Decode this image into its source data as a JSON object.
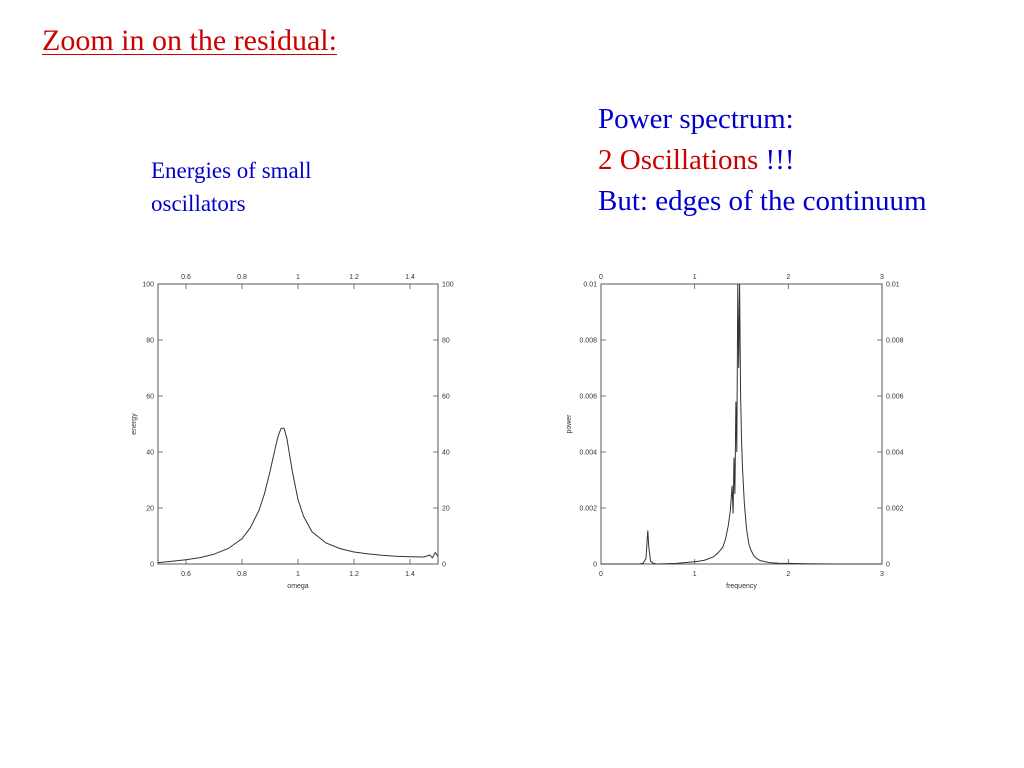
{
  "slide": {
    "title": "Zoom in on the residual:",
    "left_caption": {
      "line1": "Energies of small",
      "line2": "oscillators"
    },
    "right_caption": {
      "line1": "Power spectrum:",
      "line2_red": "2 Oscillations",
      "line2_rest": " !!!",
      "line3": "But: edges of the continuum"
    }
  },
  "colors": {
    "title": "#cc0000",
    "caption": "#0000cc",
    "emphasis": "#cc0000",
    "axes": "#555555",
    "curve": "#333333"
  },
  "chart_data": [
    {
      "type": "line",
      "xlabel": "omega",
      "ylabel": "energy",
      "xlim": [
        0.5,
        1.5
      ],
      "ylim": [
        0,
        100
      ],
      "xticks": [
        0.6,
        0.8,
        1,
        1.2,
        1.4
      ],
      "xtick_labels": [
        "0.6",
        "0.8",
        "1",
        "1.2",
        "1.4"
      ],
      "yticks": [
        0,
        20,
        40,
        60,
        80,
        100
      ],
      "ytick_labels": [
        "0",
        "20",
        "40",
        "60",
        "80",
        "100"
      ],
      "mirror_axes": true,
      "grid": false,
      "series": [
        {
          "x": [
            0.5,
            0.55,
            0.6,
            0.65,
            0.7,
            0.75,
            0.8,
            0.83,
            0.86,
            0.88,
            0.9,
            0.92,
            0.93,
            0.94,
            0.95,
            0.96,
            0.97,
            0.98,
            1.0,
            1.02,
            1.05,
            1.1,
            1.15,
            1.2,
            1.25,
            1.3,
            1.35,
            1.4,
            1.45,
            1.47,
            1.48,
            1.49,
            1.5
          ],
          "y": [
            0.5,
            1,
            1.5,
            2.3,
            3.5,
            5.5,
            9,
            13,
            19,
            25,
            33,
            42,
            46,
            48.5,
            48.5,
            45,
            39,
            33,
            23,
            17,
            11.5,
            7.5,
            5.5,
            4.3,
            3.6,
            3.1,
            2.8,
            2.6,
            2.5,
            3.2,
            2.2,
            4.1,
            2.8
          ]
        }
      ]
    },
    {
      "type": "line",
      "xlabel": "frequency",
      "ylabel": "power",
      "xlim": [
        0,
        3
      ],
      "ylim": [
        0,
        0.01
      ],
      "xticks": [
        0,
        1,
        2,
        3
      ],
      "xtick_labels": [
        "0",
        "1",
        "2",
        "3"
      ],
      "yticks": [
        0,
        0.002,
        0.004,
        0.006,
        0.008,
        0.01
      ],
      "ytick_labels": [
        "0",
        "0.002",
        "0.004",
        "0.006",
        "0.008",
        "0.01"
      ],
      "mirror_axes": true,
      "grid": false,
      "series": [
        {
          "x": [
            0,
            0.4,
            0.45,
            0.48,
            0.5,
            0.51,
            0.53,
            0.56,
            0.6,
            0.8,
            1.0,
            1.1,
            1.2,
            1.25,
            1.3,
            1.33,
            1.36,
            1.38,
            1.4,
            1.41,
            1.42,
            1.43,
            1.44,
            1.45,
            1.46,
            1.47,
            1.48,
            1.49,
            1.5,
            1.51,
            1.52,
            1.53,
            1.54,
            1.55,
            1.56,
            1.58,
            1.6,
            1.63,
            1.66,
            1.7,
            1.8,
            1.9,
            2.0,
            2.2,
            2.5,
            3.0
          ],
          "y": [
            0,
            0,
            2e-05,
            0.0002,
            0.0012,
            0.0006,
            0.0001,
            2e-05,
            0,
            2e-05,
            8e-05,
            0.00013,
            0.00025,
            0.0004,
            0.0006,
            0.0009,
            0.0014,
            0.0019,
            0.0028,
            0.0018,
            0.0038,
            0.0025,
            0.0058,
            0.004,
            0.01,
            0.007,
            0.01,
            0.006,
            0.0045,
            0.0035,
            0.0028,
            0.0022,
            0.0018,
            0.0014,
            0.0011,
            0.0007,
            0.0005,
            0.0003,
            0.0002,
            0.00012,
            5e-05,
            3e-05,
            2e-05,
            1e-05,
            0,
            0
          ]
        }
      ]
    }
  ]
}
